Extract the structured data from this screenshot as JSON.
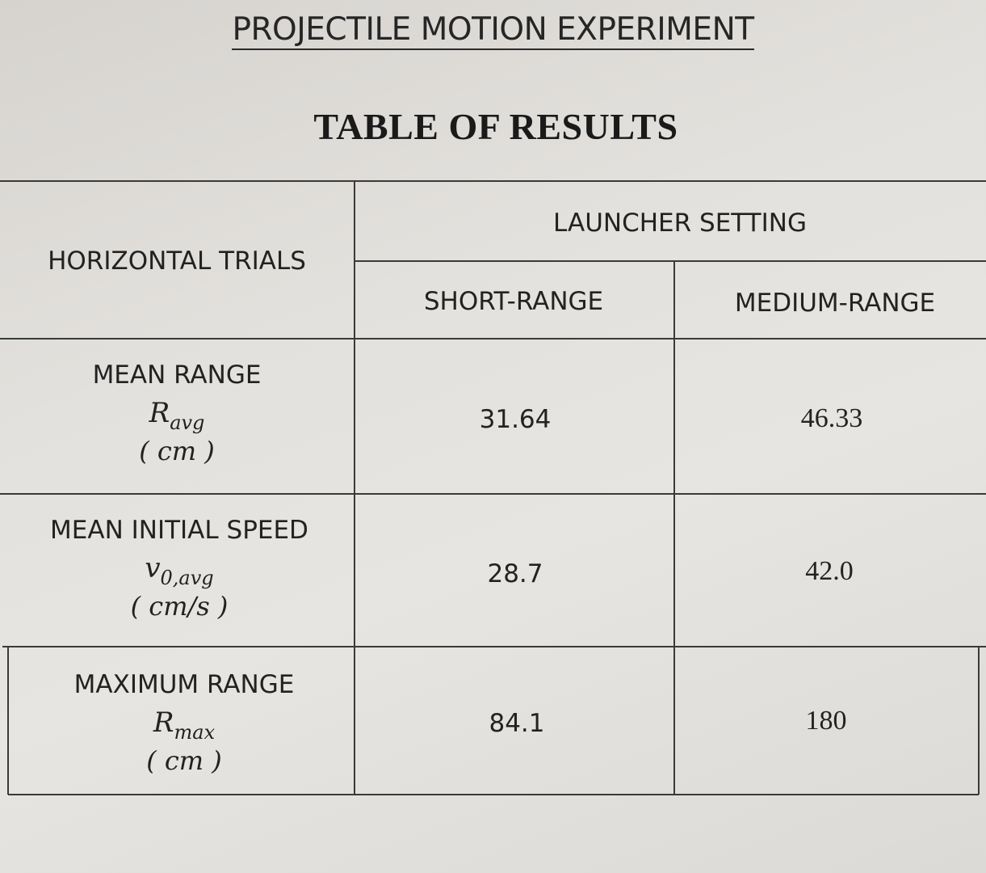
{
  "document": {
    "title": "PROJECTILE MOTION EXPERIMENT",
    "table_title": "TABLE OF RESULTS"
  },
  "table": {
    "corner_header": "HORIZONTAL TRIALS",
    "group_header": "LAUNCHER SETTING",
    "columns": [
      "SHORT-RANGE",
      "MEDIUM-RANGE"
    ],
    "rows": [
      {
        "label": "MEAN RANGE",
        "symbol": "R",
        "symbol_sub": "avg",
        "unit": "( cm )",
        "values": [
          "31.64",
          "46.33"
        ]
      },
      {
        "label": "MEAN INITIAL SPEED",
        "symbol": "v",
        "symbol_sub": "0,avg",
        "unit": "( cm/s )",
        "values": [
          "28.7",
          "42.0"
        ]
      },
      {
        "label": "MAXIMUM RANGE",
        "symbol": "R",
        "symbol_sub": "max",
        "unit": "( cm )",
        "values": [
          "84.1",
          "180"
        ]
      }
    ]
  }
}
